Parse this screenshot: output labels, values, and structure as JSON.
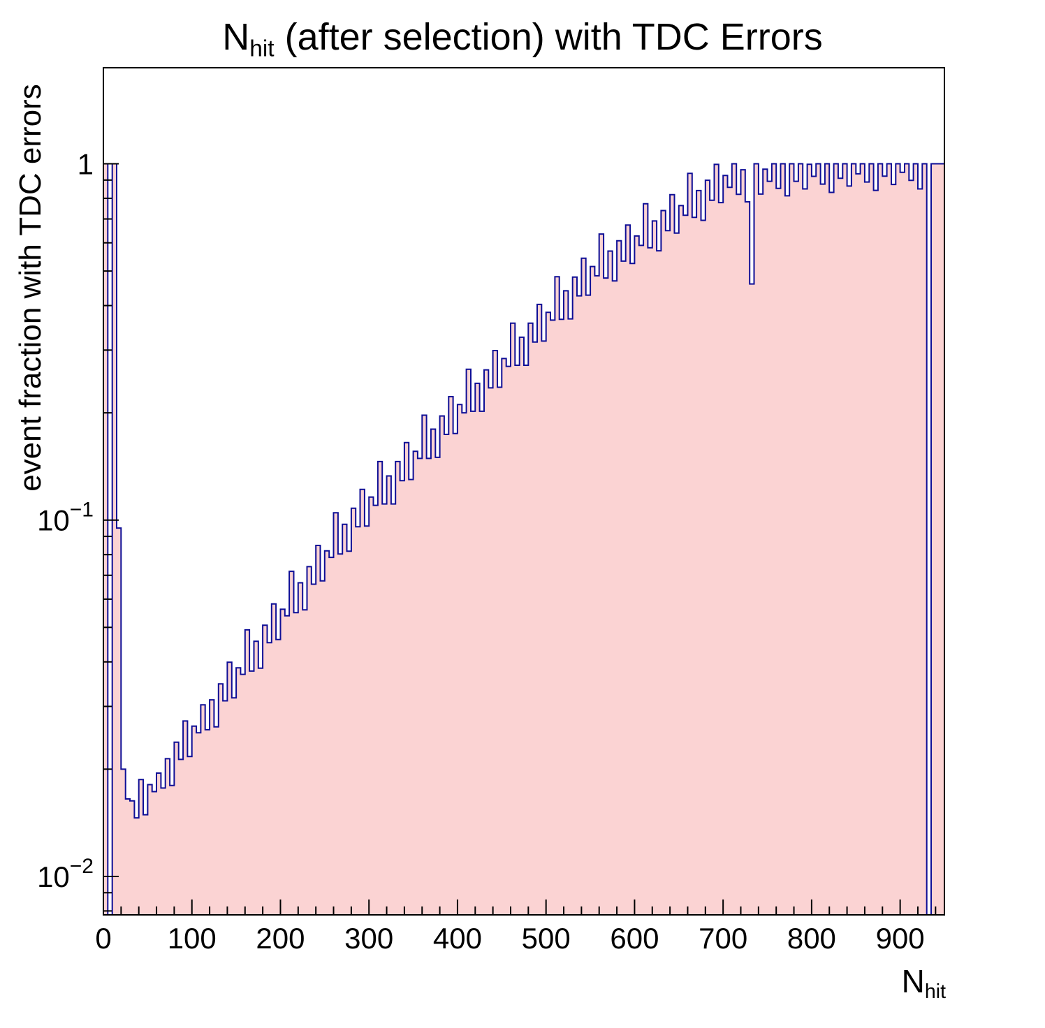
{
  "chart_data": {
    "type": "area",
    "style": "histogram-step-log-y",
    "title_parts": {
      "main": "N",
      "sub": "hit",
      "rest": " (after selection) with TDC Errors"
    },
    "ylabel": "event fraction with TDC errors",
    "xlabel_parts": {
      "main": "N",
      "sub": "hit"
    },
    "x_min": 0,
    "x_max": 950,
    "bin_width": 5,
    "y_scale": "log",
    "y_min": 0.0078,
    "y_max": 1.86,
    "x_ticks": [
      0,
      100,
      200,
      300,
      400,
      500,
      600,
      700,
      800,
      900
    ],
    "x_minor_step": 20,
    "y_ticks": [
      {
        "value": 0.01,
        "label": "10^−2"
      },
      {
        "value": 0.1,
        "label": "10^−1"
      },
      {
        "value": 1,
        "label": "1"
      }
    ],
    "grid": false,
    "legend": "none",
    "colors": {
      "fill": "#fbd3d3",
      "line": "#0e0e96",
      "axis": "#000000"
    },
    "values": [
      1.0,
      0.006,
      1.0,
      0.095,
      0.02,
      0.0165,
      0.0163,
      0.0146,
      0.0187,
      0.0149,
      0.0181,
      0.0173,
      0.0195,
      0.0177,
      0.0214,
      0.018,
      0.0238,
      0.0213,
      0.0273,
      0.0217,
      0.0264,
      0.0253,
      0.0303,
      0.0258,
      0.0313,
      0.0263,
      0.0347,
      0.0311,
      0.0399,
      0.0317,
      0.0385,
      0.0369,
      0.0492,
      0.0377,
      0.0457,
      0.0384,
      0.0507,
      0.0453,
      0.0582,
      0.0462,
      0.0562,
      0.0539,
      0.0718,
      0.055,
      0.0667,
      0.056,
      0.074,
      0.0661,
      0.0849,
      0.0675,
      0.082,
      0.0786,
      0.1048,
      0.0803,
      0.0973,
      0.0818,
      0.108,
      0.0958,
      0.122,
      0.0962,
      0.116,
      0.11,
      0.146,
      0.111,
      0.133,
      0.111,
      0.146,
      0.129,
      0.165,
      0.13,
      0.156,
      0.149,
      0.197,
      0.149,
      0.18,
      0.15,
      0.196,
      0.174,
      0.222,
      0.175,
      0.211,
      0.2,
      0.265,
      0.202,
      0.242,
      0.202,
      0.264,
      0.235,
      0.299,
      0.236,
      0.284,
      0.27,
      0.357,
      0.272,
      0.326,
      0.272,
      0.357,
      0.316,
      0.403,
      0.318,
      0.383,
      0.364,
      0.482,
      0.366,
      0.44,
      0.367,
      0.481,
      0.426,
      0.543,
      0.428,
      0.515,
      0.485,
      0.635,
      0.478,
      0.569,
      0.469,
      0.608,
      0.533,
      0.673,
      0.525,
      0.627,
      0.59,
      0.772,
      0.581,
      0.691,
      0.57,
      0.739,
      0.649,
      0.819,
      0.639,
      0.763,
      0.717,
      0.94,
      0.707,
      0.841,
      0.694,
      0.899,
      0.79,
      0.996,
      0.778,
      0.927,
      0.859,
      1.0,
      0.821,
      0.962,
      0.782,
      0.46,
      1.0,
      0.822,
      0.966,
      0.893,
      1.0,
      0.853,
      1.0,
      0.813,
      1.0,
      0.893,
      1.0,
      0.85,
      0.997,
      0.922,
      1.0,
      0.877,
      1.0,
      0.831,
      1.0,
      0.911,
      1.0,
      0.866,
      1.0,
      0.937,
      1.0,
      0.889,
      1.0,
      0.842,
      1.0,
      0.923,
      1.0,
      0.875,
      1.0,
      0.946,
      1.0,
      0.898,
      1.0,
      0.85,
      1.0,
      0.006,
      1.0,
      1.0,
      1.0
    ]
  }
}
